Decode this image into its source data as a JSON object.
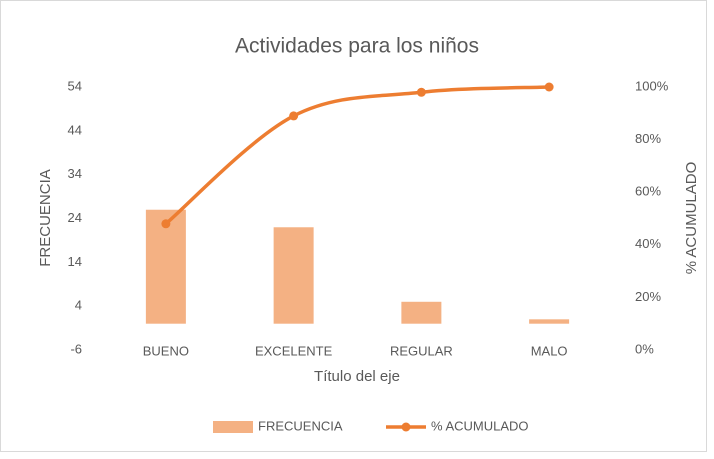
{
  "chart_data": {
    "type": "pareto",
    "title": "Actividades para los niños",
    "x_label": "Título del eje",
    "y_label": "FRECUENCIA",
    "y2_label": "% ACUMULADO",
    "categories": [
      "BUENO",
      "EXCELENTE",
      "REGULAR",
      "MALO"
    ],
    "series": [
      {
        "name": "FRECUENCIA",
        "color": "#f4b183",
        "values": [
          26,
          22,
          5,
          1
        ]
      },
      {
        "name": "% ACUMULADO",
        "color": "#ed7d31",
        "axis": "y2",
        "values": [
          48,
          89,
          98,
          100
        ]
      }
    ],
    "ylim": [
      -6,
      54
    ],
    "yticks": [
      -6,
      4,
      14,
      24,
      34,
      44,
      54
    ],
    "y2lim": [
      0,
      100
    ],
    "y2ticks": [
      {
        "value": 0,
        "label": "0%"
      },
      {
        "value": 20,
        "label": "20%"
      },
      {
        "value": 40,
        "label": "40%"
      },
      {
        "value": 60,
        "label": "60%"
      },
      {
        "value": 80,
        "label": "80%"
      },
      {
        "value": 100,
        "label": "100%"
      }
    ],
    "grid": false,
    "legend": "bottom"
  }
}
